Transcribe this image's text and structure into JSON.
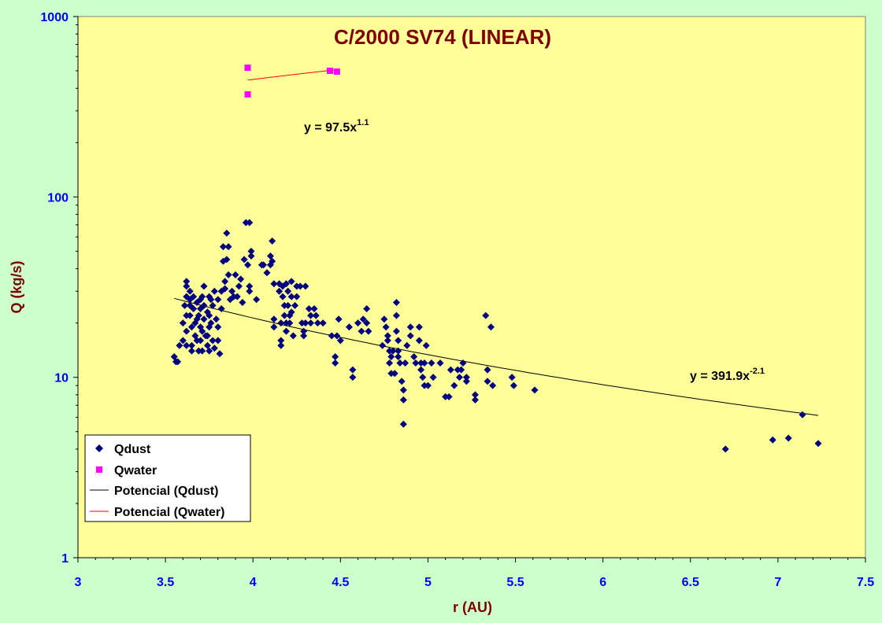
{
  "chart_data": {
    "type": "scatter",
    "title": "C/2000 SV74 (LINEAR)",
    "xlabel": "r (AU)",
    "ylabel": "Q (kg/s)",
    "xlim": [
      3,
      7.5
    ],
    "ylim": [
      1,
      1000
    ],
    "y_scale": "log",
    "x_ticks": [
      "3",
      "3.5",
      "4",
      "4.5",
      "5",
      "5.5",
      "6",
      "6.5",
      "7",
      "7.5"
    ],
    "y_ticks": [
      "1",
      "10",
      "100",
      "1000"
    ],
    "grid": false,
    "background": "#ffff99",
    "legend_position": "bottom-left",
    "legend": [
      "Qdust",
      "Qwater",
      "Potencial (Qdust)",
      "Potencial (Qwater)"
    ],
    "equations": {
      "water": {
        "base": "y = 97.5x",
        "exp": "1.1"
      },
      "dust": {
        "base": "y = 391.9x",
        "exp": "-2.1"
      }
    },
    "series": [
      {
        "name": "Qdust",
        "marker": "diamond",
        "color": "#000080",
        "points": [
          [
            3.55,
            13
          ],
          [
            3.56,
            12.2
          ],
          [
            3.57,
            12.2
          ],
          [
            3.58,
            15
          ],
          [
            3.6,
            16
          ],
          [
            3.6,
            20
          ],
          [
            3.61,
            25
          ],
          [
            3.62,
            28
          ],
          [
            3.62,
            22
          ],
          [
            3.62,
            18
          ],
          [
            3.62,
            15
          ],
          [
            3.62,
            32
          ],
          [
            3.62,
            34
          ],
          [
            3.64,
            30
          ],
          [
            3.64,
            27
          ],
          [
            3.64,
            25
          ],
          [
            3.64,
            22
          ],
          [
            3.65,
            19
          ],
          [
            3.65,
            15
          ],
          [
            3.65,
            14
          ],
          [
            3.66,
            28
          ],
          [
            3.66,
            24
          ],
          [
            3.67,
            20
          ],
          [
            3.67,
            17
          ],
          [
            3.68,
            26
          ],
          [
            3.68,
            21
          ],
          [
            3.68,
            16
          ],
          [
            3.69,
            22
          ],
          [
            3.69,
            14
          ],
          [
            3.7,
            27
          ],
          [
            3.7,
            24
          ],
          [
            3.7,
            19
          ],
          [
            3.7,
            16
          ],
          [
            3.71,
            28
          ],
          [
            3.71,
            18
          ],
          [
            3.71,
            14
          ],
          [
            3.72,
            32
          ],
          [
            3.72,
            25
          ],
          [
            3.72,
            21
          ],
          [
            3.73,
            17
          ],
          [
            3.74,
            23
          ],
          [
            3.74,
            17
          ],
          [
            3.74,
            15
          ],
          [
            3.75,
            28
          ],
          [
            3.75,
            22
          ],
          [
            3.75,
            19
          ],
          [
            3.75,
            14
          ],
          [
            3.76,
            27
          ],
          [
            3.76,
            20
          ],
          [
            3.77,
            25
          ],
          [
            3.77,
            16
          ],
          [
            3.78,
            30
          ],
          [
            3.78,
            14.5
          ],
          [
            3.79,
            21
          ],
          [
            3.8,
            27
          ],
          [
            3.8,
            19
          ],
          [
            3.8,
            16
          ],
          [
            3.81,
            13.5
          ],
          [
            3.82,
            30
          ],
          [
            3.82,
            24
          ],
          [
            3.83,
            53
          ],
          [
            3.83,
            44
          ],
          [
            3.84,
            34
          ],
          [
            3.84,
            31
          ],
          [
            3.85,
            63
          ],
          [
            3.85,
            45
          ],
          [
            3.86,
            53
          ],
          [
            3.86,
            37
          ],
          [
            3.87,
            27
          ],
          [
            3.88,
            30
          ],
          [
            3.89,
            28
          ],
          [
            3.9,
            37
          ],
          [
            3.91,
            28
          ],
          [
            3.92,
            32
          ],
          [
            3.93,
            35
          ],
          [
            3.94,
            26
          ],
          [
            3.95,
            45
          ],
          [
            3.96,
            72
          ],
          [
            3.97,
            42
          ],
          [
            3.98,
            72
          ],
          [
            3.98,
            32
          ],
          [
            3.98,
            30
          ],
          [
            3.99,
            50
          ],
          [
            3.99,
            47
          ],
          [
            4.02,
            27
          ],
          [
            4.05,
            42
          ],
          [
            4.06,
            42
          ],
          [
            4.08,
            38
          ],
          [
            4.1,
            47
          ],
          [
            4.1,
            42
          ],
          [
            4.11,
            57
          ],
          [
            4.11,
            44
          ],
          [
            4.12,
            33
          ],
          [
            4.12,
            21
          ],
          [
            4.12,
            19
          ],
          [
            4.15,
            33
          ],
          [
            4.15,
            30
          ],
          [
            4.16,
            20
          ],
          [
            4.16,
            16
          ],
          [
            4.16,
            15
          ],
          [
            4.17,
            32
          ],
          [
            4.17,
            28
          ],
          [
            4.18,
            25
          ],
          [
            4.18,
            22
          ],
          [
            4.19,
            33
          ],
          [
            4.19,
            20
          ],
          [
            4.19,
            18
          ],
          [
            4.2,
            30
          ],
          [
            4.2,
            25
          ],
          [
            4.21,
            22
          ],
          [
            4.21,
            20
          ],
          [
            4.22,
            34
          ],
          [
            4.22,
            28
          ],
          [
            4.22,
            23
          ],
          [
            4.23,
            17
          ],
          [
            4.24,
            25
          ],
          [
            4.25,
            32
          ],
          [
            4.25,
            28
          ],
          [
            4.27,
            32
          ],
          [
            4.28,
            20
          ],
          [
            4.29,
            18
          ],
          [
            4.29,
            17
          ],
          [
            4.3,
            20
          ],
          [
            4.3,
            32
          ],
          [
            4.32,
            24
          ],
          [
            4.33,
            22
          ],
          [
            4.33,
            20
          ],
          [
            4.35,
            24
          ],
          [
            4.36,
            22
          ],
          [
            4.37,
            20
          ],
          [
            4.4,
            20
          ],
          [
            4.45,
            17
          ],
          [
            4.47,
            12
          ],
          [
            4.47,
            13
          ],
          [
            4.48,
            17
          ],
          [
            4.49,
            21
          ],
          [
            4.5,
            16
          ],
          [
            4.55,
            19
          ],
          [
            4.57,
            11
          ],
          [
            4.57,
            10
          ],
          [
            4.6,
            20
          ],
          [
            4.62,
            18
          ],
          [
            4.63,
            21
          ],
          [
            4.65,
            20
          ],
          [
            4.65,
            24
          ],
          [
            4.66,
            18
          ],
          [
            4.74,
            15
          ],
          [
            4.75,
            21
          ],
          [
            4.76,
            19
          ],
          [
            4.77,
            17
          ],
          [
            4.77,
            16
          ],
          [
            4.78,
            14
          ],
          [
            4.78,
            12
          ],
          [
            4.79,
            13
          ],
          [
            4.79,
            10.5
          ],
          [
            4.8,
            14
          ],
          [
            4.81,
            10.5
          ],
          [
            4.82,
            26
          ],
          [
            4.82,
            22
          ],
          [
            4.82,
            18
          ],
          [
            4.83,
            16
          ],
          [
            4.83,
            14
          ],
          [
            4.83,
            13
          ],
          [
            4.84,
            12
          ],
          [
            4.85,
            9.5
          ],
          [
            4.86,
            8.5
          ],
          [
            4.86,
            7.5
          ],
          [
            4.86,
            5.5
          ],
          [
            4.87,
            12
          ],
          [
            4.88,
            15
          ],
          [
            4.9,
            19
          ],
          [
            4.9,
            17
          ],
          [
            4.92,
            13
          ],
          [
            4.93,
            12
          ],
          [
            4.95,
            19
          ],
          [
            4.95,
            16
          ],
          [
            4.96,
            12
          ],
          [
            4.96,
            11
          ],
          [
            4.97,
            10
          ],
          [
            4.98,
            9
          ],
          [
            4.98,
            12
          ],
          [
            4.99,
            15
          ],
          [
            5.0,
            9
          ],
          [
            5.02,
            12
          ],
          [
            5.03,
            10
          ],
          [
            5.07,
            12
          ],
          [
            5.1,
            7.8
          ],
          [
            5.12,
            7.8
          ],
          [
            5.13,
            11
          ],
          [
            5.15,
            9
          ],
          [
            5.17,
            11
          ],
          [
            5.18,
            10
          ],
          [
            5.19,
            11
          ],
          [
            5.2,
            12
          ],
          [
            5.22,
            10
          ],
          [
            5.22,
            9.5
          ],
          [
            5.27,
            8
          ],
          [
            5.27,
            7.5
          ],
          [
            5.33,
            22
          ],
          [
            5.34,
            11
          ],
          [
            5.34,
            9.5
          ],
          [
            5.36,
            19
          ],
          [
            5.37,
            9
          ],
          [
            5.48,
            10
          ],
          [
            5.49,
            9
          ],
          [
            5.61,
            8.5
          ],
          [
            6.7,
            4
          ],
          [
            6.97,
            4.5
          ],
          [
            7.06,
            4.6
          ],
          [
            7.14,
            6.2
          ],
          [
            7.23,
            4.3
          ]
        ]
      },
      {
        "name": "Qwater",
        "marker": "square",
        "color": "#ff00ff",
        "points": [
          [
            3.97,
            520
          ],
          [
            3.97,
            370
          ],
          [
            4.44,
            500
          ],
          [
            4.48,
            495
          ]
        ]
      },
      {
        "name": "Potencial (Qdust)",
        "type": "line",
        "color": "#000000",
        "x_range": [
          3.55,
          7.23
        ],
        "coef": 391.9,
        "exponent": -2.1
      },
      {
        "name": "Potencial (Qwater)",
        "type": "line",
        "color": "#ff0000",
        "x_range": [
          3.97,
          4.48
        ],
        "coef": 97.5,
        "exponent": 1.1
      }
    ]
  }
}
